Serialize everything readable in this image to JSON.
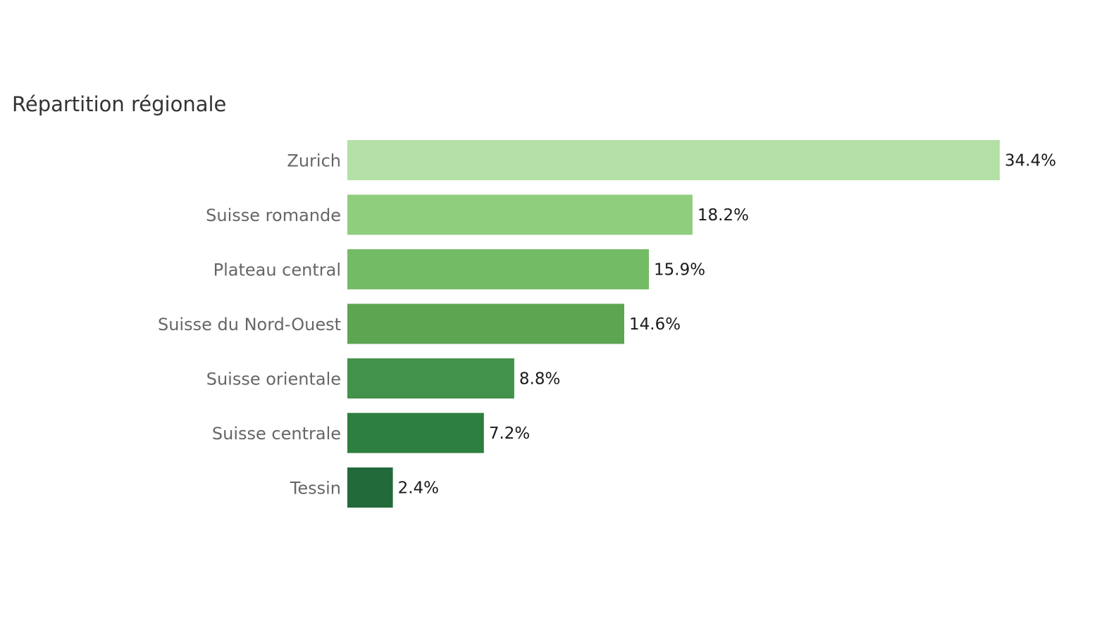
{
  "chart_data": {
    "type": "bar",
    "orientation": "horizontal",
    "title": "Répartition régionale",
    "categories": [
      "Zurich",
      "Suisse romande",
      "Plateau central",
      "Suisse du Nord-Ouest",
      "Suisse orientale",
      "Suisse centrale",
      "Tessin"
    ],
    "values": [
      34.4,
      18.2,
      15.9,
      14.6,
      8.8,
      7.2,
      2.4
    ],
    "value_labels": [
      "34.4%",
      "18.2%",
      "15.9%",
      "14.6%",
      "8.8%",
      "7.2%",
      "2.4%"
    ],
    "value_unit": "%",
    "colors": [
      "#b3e0a6",
      "#8ece7d",
      "#73bb65",
      "#5ea552",
      "#42924b",
      "#2c7f3e",
      "#236a3b"
    ],
    "xlabel": "",
    "ylabel": "",
    "xlim": [
      0,
      34.4
    ],
    "grid": false,
    "legend": "none"
  }
}
